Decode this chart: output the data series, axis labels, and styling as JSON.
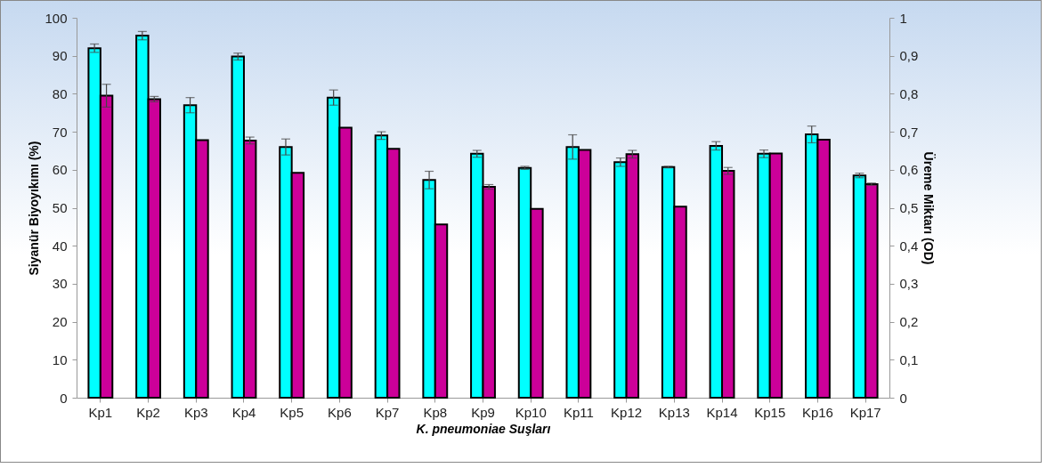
{
  "chart_data": {
    "type": "bar",
    "xlabel": "K. pneumoniae Suşları",
    "ylabel": "Siyanür Biyoyıkımı (%)",
    "y2label": "Üreme Miktarı (OD)",
    "categories": [
      "Kp1",
      "Kp2",
      "Kp3",
      "Kp4",
      "Kp5",
      "Kp6",
      "Kp7",
      "Kp8",
      "Kp9",
      "Kp10",
      "Kp11",
      "Kp12",
      "Kp13",
      "Kp14",
      "Kp15",
      "Kp16",
      "Kp17"
    ],
    "series": [
      {
        "color": "#00ffff",
        "values": [
          92,
          95.3,
          77,
          89.8,
          66,
          79,
          69,
          57.3,
          64.2,
          60.5,
          66,
          62,
          60.7,
          66.3,
          64.2,
          69.3,
          58.5
        ],
        "errors": [
          1.1,
          1.1,
          2.0,
          0.9,
          2.1,
          2.0,
          1.0,
          2.3,
          0.9,
          0.4,
          3.2,
          1.1,
          0.2,
          1.1,
          1.0,
          2.2,
          0.6
        ]
      },
      {
        "color": "#cc0099",
        "axis": "y2",
        "values": [
          0.795,
          0.786,
          0.678,
          0.677,
          0.592,
          0.711,
          0.655,
          0.456,
          0.555,
          0.497,
          0.652,
          0.641,
          0.503,
          0.597,
          0.643,
          0.679,
          0.562
        ],
        "errors": [
          0.03,
          0.007,
          null,
          0.009,
          null,
          null,
          null,
          null,
          0.006,
          null,
          null,
          0.01,
          null,
          0.009,
          null,
          null,
          0.003
        ]
      }
    ],
    "ylim": [
      0,
      100
    ],
    "yticks": [
      0,
      10,
      20,
      30,
      40,
      50,
      60,
      70,
      80,
      90,
      100
    ],
    "y2lim": [
      0,
      1
    ],
    "y2ticks": [
      0,
      {
        "value": 0.1,
        "label": "0,1"
      },
      {
        "value": 0.2,
        "label": "0,2"
      },
      {
        "value": 0.3,
        "label": "0,3"
      },
      {
        "value": 0.4,
        "label": "0,4"
      },
      {
        "value": 0.5,
        "label": "0,5"
      },
      {
        "value": 0.6,
        "label": "0,6"
      },
      {
        "value": 0.7,
        "label": "0,7"
      },
      {
        "value": 0.8,
        "label": "0,8"
      },
      {
        "value": 0.9,
        "label": "0,9"
      },
      1
    ],
    "grid": false
  }
}
